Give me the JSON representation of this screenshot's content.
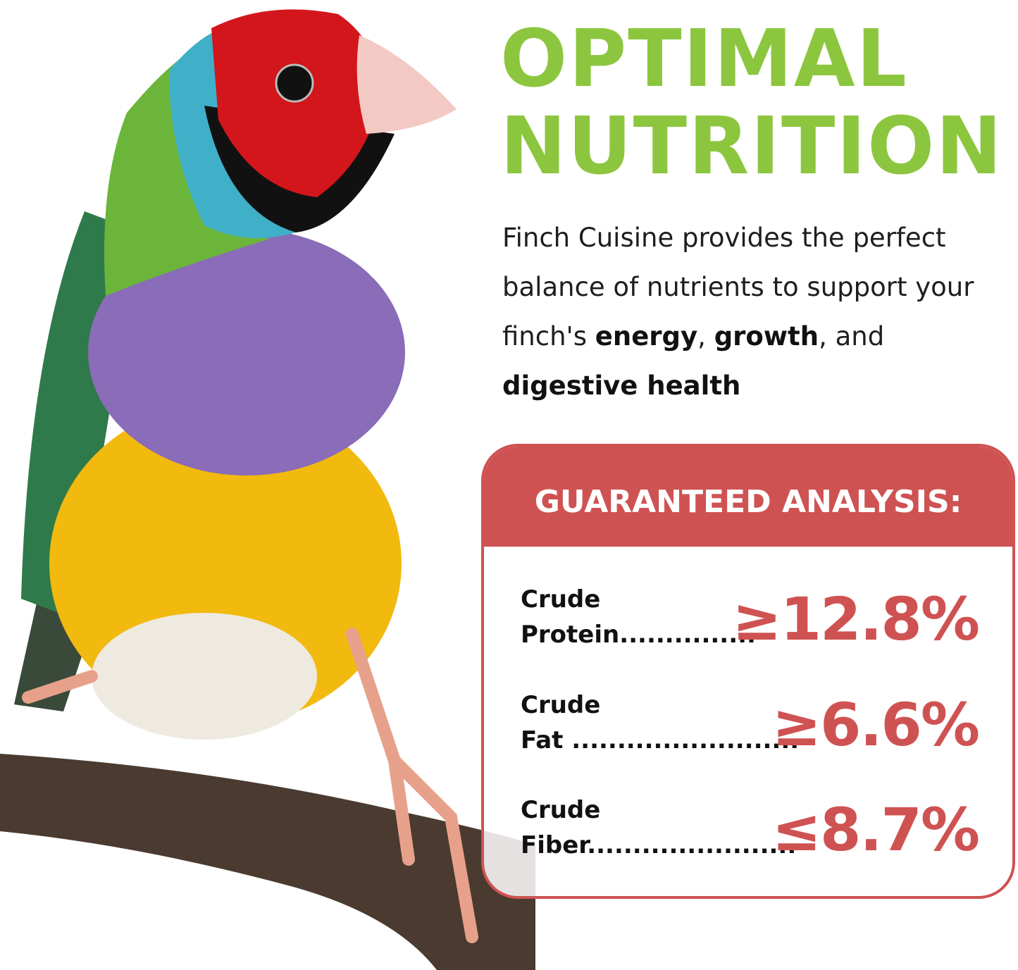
{
  "colors": {
    "accent_green": "#8cc63f",
    "accent_red": "#cf5252"
  },
  "image": {
    "subject": "gouldian-finch-on-branch"
  },
  "headline": {
    "line1": "OPTIMAL",
    "line2": "NUTRITION"
  },
  "description": {
    "text1": "Finch Cuisine provides the perfect balance of nutrients to support your finch's ",
    "bold1": "energy",
    "text2": ", ",
    "bold2": "growth",
    "text3": ", and ",
    "bold3": "digestive health"
  },
  "analysis": {
    "title": "GUARANTEED ANALYSIS:",
    "items": [
      {
        "line1": "Crude",
        "line2": "Protein...............",
        "value": "≥12.8%"
      },
      {
        "line1": "Crude",
        "line2": "Fat .........................",
        "value": "≥6.6%"
      },
      {
        "line1": "Crude",
        "line2": "Fiber.......................",
        "value": "≤8.7%"
      }
    ]
  }
}
